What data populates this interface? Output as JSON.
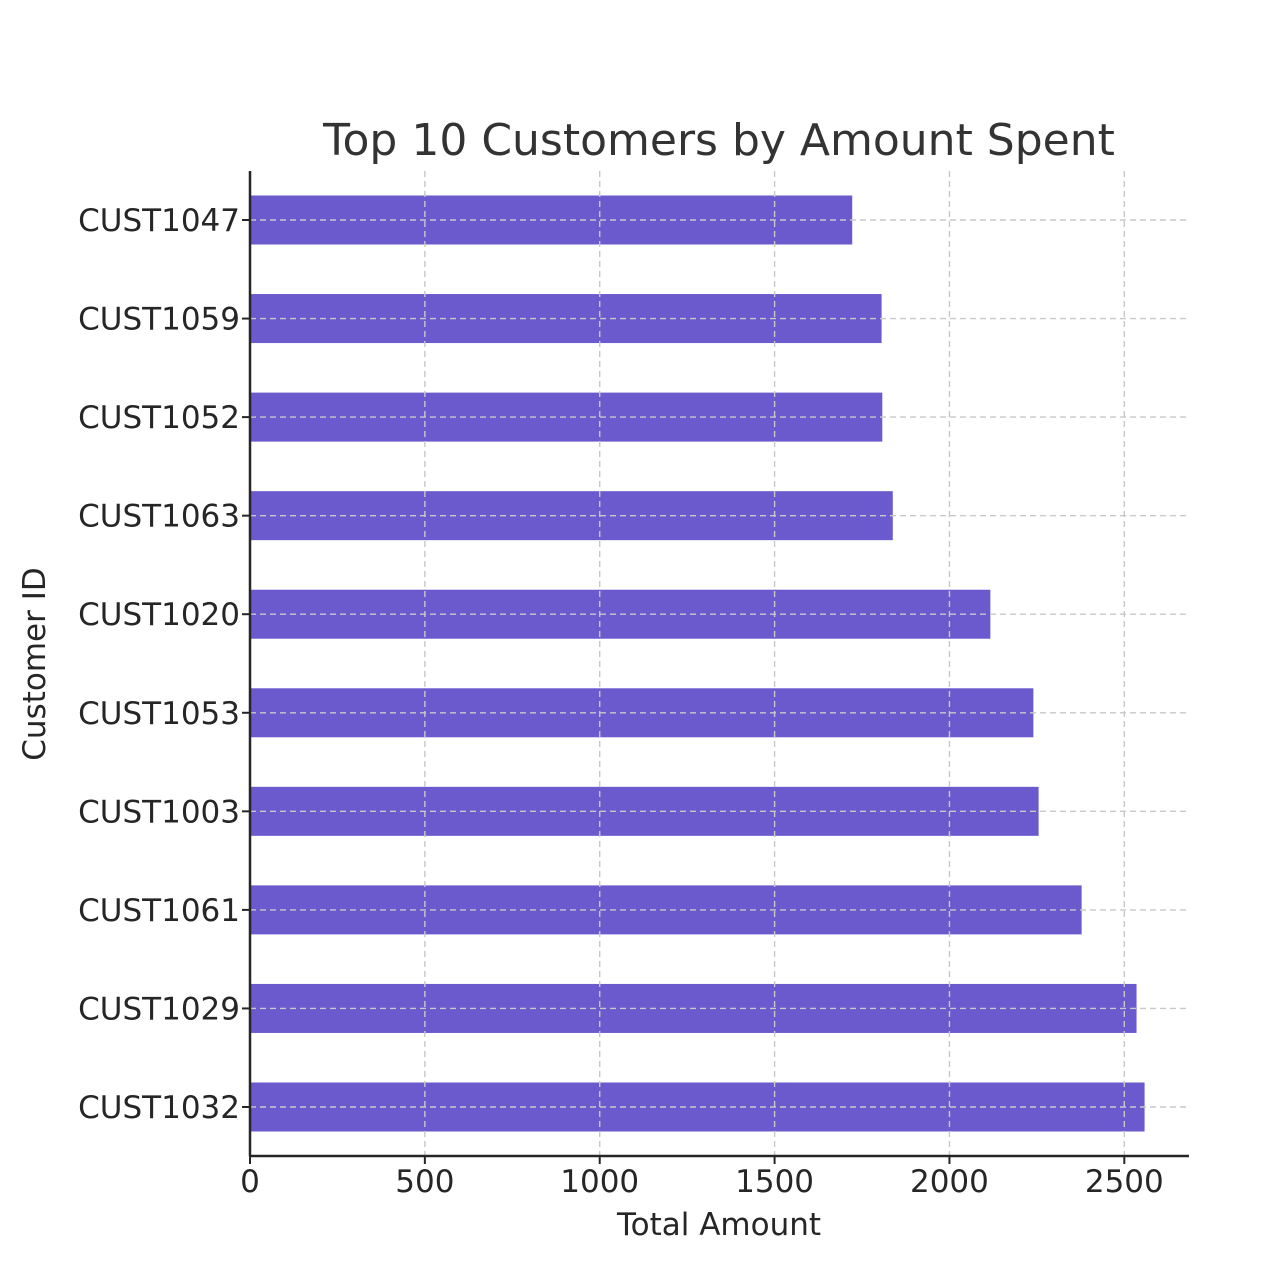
{
  "chart_data": {
    "type": "bar",
    "orientation": "horizontal",
    "title": "Top 10 Customers by Amount Spent",
    "xlabel": "Total Amount",
    "ylabel": "Customer ID",
    "categories": [
      "CUST1047",
      "CUST1059",
      "CUST1052",
      "CUST1063",
      "CUST1020",
      "CUST1053",
      "CUST1003",
      "CUST1061",
      "CUST1029",
      "CUST1032"
    ],
    "values": [
      1722,
      1806,
      1808,
      1838,
      2117,
      2240,
      2255,
      2378,
      2535,
      2558
    ],
    "xlim": [
      0,
      2685
    ],
    "xticks": [
      "0",
      "500",
      "1000",
      "1500",
      "2000",
      "2500"
    ],
    "grid": true,
    "bar_color": "#6a5acd",
    "grid_color": "#c8c8c8"
  }
}
